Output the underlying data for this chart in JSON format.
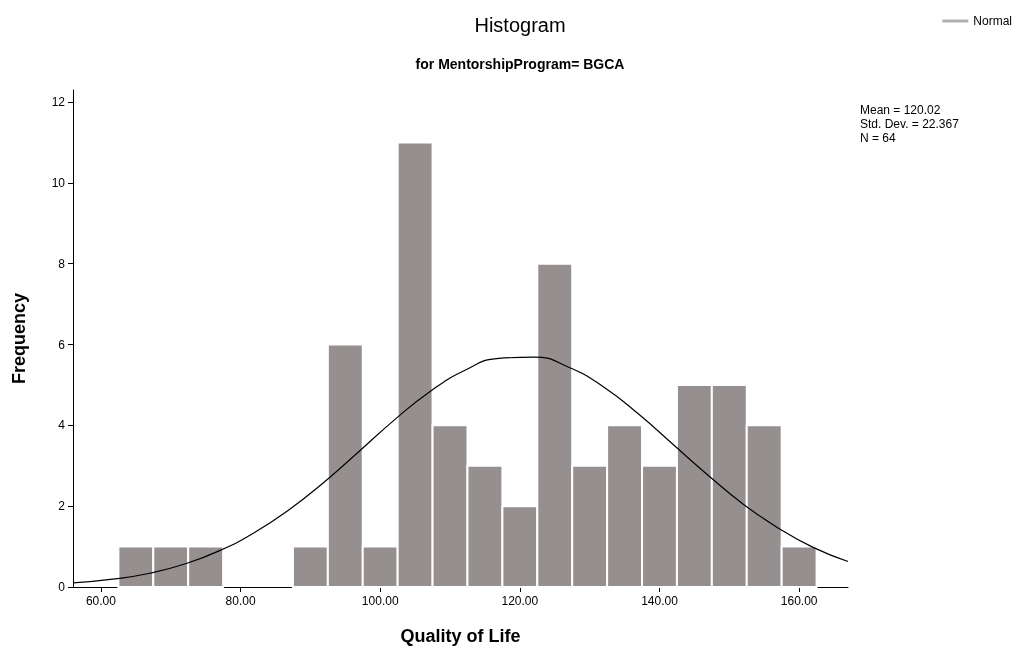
{
  "chart_data": {
    "type": "histogram",
    "title": "Histogram",
    "subtitle": "for MentorshipProgram= BGCA",
    "xlabel": "Quality of Life",
    "ylabel": "Frequency",
    "series": [
      {
        "color": "#958f8f",
        "bins": [
          62.5,
          67.5,
          72.5,
          77.5,
          82.5,
          87.5,
          92.5,
          97.5,
          102.5,
          107.5,
          112.5,
          117.5,
          122.5,
          127.5,
          132.5,
          137.5,
          142.5,
          147.5,
          152.5,
          157.5,
          162.5
        ],
        "values": [
          1,
          1,
          1,
          0,
          0,
          1,
          6,
          1,
          11,
          4,
          3,
          2,
          8,
          3,
          4,
          3,
          5,
          5,
          4,
          1
        ]
      },
      {
        "type": "line",
        "name": "Normal",
        "color": "#000000",
        "marker": "none",
        "x": [
          56,
          62,
          67,
          72,
          77,
          82,
          87,
          92,
          97,
          102,
          107,
          112,
          117,
          122,
          127,
          132,
          137,
          142,
          147,
          152,
          157,
          162,
          167
        ],
        "values": [
          0.1,
          0.2,
          0.34,
          0.57,
          0.9,
          1.35,
          1.92,
          2.6,
          3.36,
          4.13,
          4.82,
          5.35,
          5.66,
          5.69,
          5.44,
          4.95,
          4.28,
          3.52,
          2.76,
          2.05,
          1.46,
          0.98,
          0.63
        ]
      }
    ],
    "xlim": [
      56,
      167
    ],
    "xticks": [
      {
        "value": 60,
        "label": "60.00"
      },
      {
        "value": 80,
        "label": "80.00"
      },
      {
        "value": 100,
        "label": "100.00"
      },
      {
        "value": 120,
        "label": "120.00"
      },
      {
        "value": 140,
        "label": "140.00"
      },
      {
        "value": 160,
        "label": "160.00"
      }
    ],
    "ylim": [
      0,
      12.3
    ],
    "yticks": [
      0,
      2,
      4,
      6,
      8,
      10,
      12
    ],
    "grid": false,
    "legend": "top right",
    "annotations": [
      "Mean = 120.02",
      "Std. Dev. = 22.367",
      "N = 64"
    ]
  }
}
